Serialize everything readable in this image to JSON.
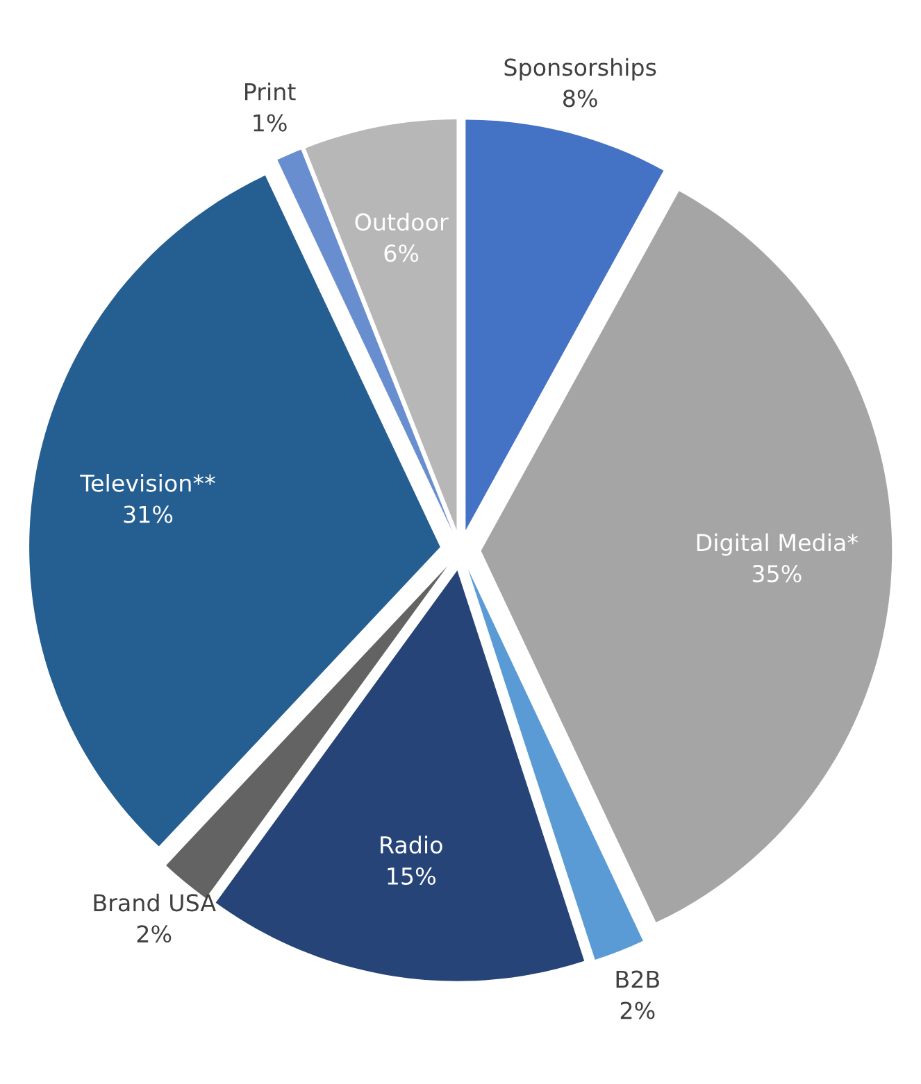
{
  "chart_data": {
    "type": "pie",
    "categories": [
      "Sponsorships",
      "Digital Media*",
      "B2B",
      "Radio",
      "Brand USA",
      "Television**",
      "Print",
      "Outdoor"
    ],
    "values": [
      8,
      35,
      2,
      15,
      2,
      31,
      1,
      6
    ],
    "colors": [
      "#4472c4",
      "#a5a5a5",
      "#5b9bd5",
      "#264478",
      "#636363",
      "#255e91",
      "#698ed0",
      "#b7b7b7"
    ],
    "value_labels": [
      "8%",
      "35%",
      "2%",
      "15%",
      "2%",
      "31%",
      "1%",
      "6%"
    ]
  }
}
